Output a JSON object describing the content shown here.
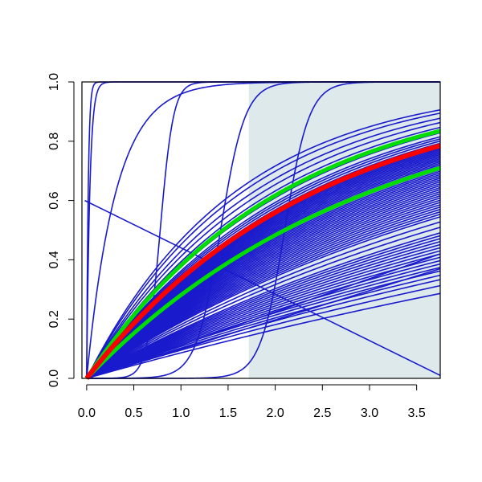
{
  "colors": {
    "lines": "#1a1acd",
    "highlight_mean": "#ff0000",
    "highlight_band": "#00dd00",
    "shaded_region": "#dde9ea",
    "axis": "#000000"
  },
  "chart_data": {
    "type": "line",
    "title": "",
    "xlabel": "",
    "ylabel": "",
    "xlim": [
      -0.05,
      3.75
    ],
    "ylim": [
      0,
      1.0
    ],
    "x_ticks": [
      "0.0",
      "0.5",
      "1.0",
      "1.5",
      "2.0",
      "2.5",
      "3.0",
      "3.5"
    ],
    "x_tick_values": [
      0,
      0.5,
      1.0,
      1.5,
      2.0,
      2.5,
      3.0,
      3.5
    ],
    "y_ticks": [
      "0.0",
      "0.2",
      "0.4",
      "0.6",
      "0.8",
      "1.0"
    ],
    "y_tick_values": [
      0,
      0.2,
      0.4,
      0.6,
      0.8,
      1.0
    ],
    "shaded_region_x": [
      1.72,
      3.75
    ],
    "saturating_curve_rates": [
      0.09,
      0.1,
      0.108,
      0.114,
      0.12,
      0.125,
      0.13,
      0.135,
      0.14,
      0.145,
      0.15,
      0.155,
      0.16,
      0.165,
      0.17,
      0.175,
      0.18,
      0.19,
      0.2,
      0.21,
      0.215,
      0.22,
      0.225,
      0.23,
      0.235,
      0.24,
      0.245,
      0.25,
      0.255,
      0.26,
      0.265,
      0.27,
      0.275,
      0.28,
      0.285,
      0.29,
      0.295,
      0.3,
      0.305,
      0.31,
      0.315,
      0.32,
      0.325,
      0.33,
      0.335,
      0.34,
      0.345,
      0.35,
      0.355,
      0.36,
      0.365,
      0.37,
      0.375,
      0.38,
      0.385,
      0.39,
      0.395,
      0.4,
      0.41,
      0.42,
      0.43,
      0.44,
      0.45,
      0.47,
      0.5,
      0.53,
      0.56,
      0.6,
      0.63
    ],
    "highlight_mean_rate": 0.41,
    "highlight_band_rates": [
      0.33,
      0.48
    ],
    "steep_curves": [
      {
        "kind": "exp",
        "rate": 60
      },
      {
        "kind": "exp",
        "rate": 30
      },
      {
        "kind": "exp",
        "rate": 3.2
      },
      {
        "kind": "sigmoid",
        "midpoint": 0.78,
        "slope": 0.07
      },
      {
        "kind": "sigmoid",
        "midpoint": 1.42,
        "slope": 0.13
      },
      {
        "kind": "sigmoid",
        "midpoint": 2.1,
        "slope": 0.13
      }
    ],
    "straight_lines": [
      {
        "from": [
          0,
          0
        ],
        "to": [
          3.75,
          0.37
        ]
      },
      {
        "from": [
          0,
          0
        ],
        "to": [
          3.75,
          0.42
        ]
      },
      {
        "from": [
          -0.02,
          0.6
        ],
        "to": [
          3.75,
          0.01
        ]
      }
    ]
  }
}
